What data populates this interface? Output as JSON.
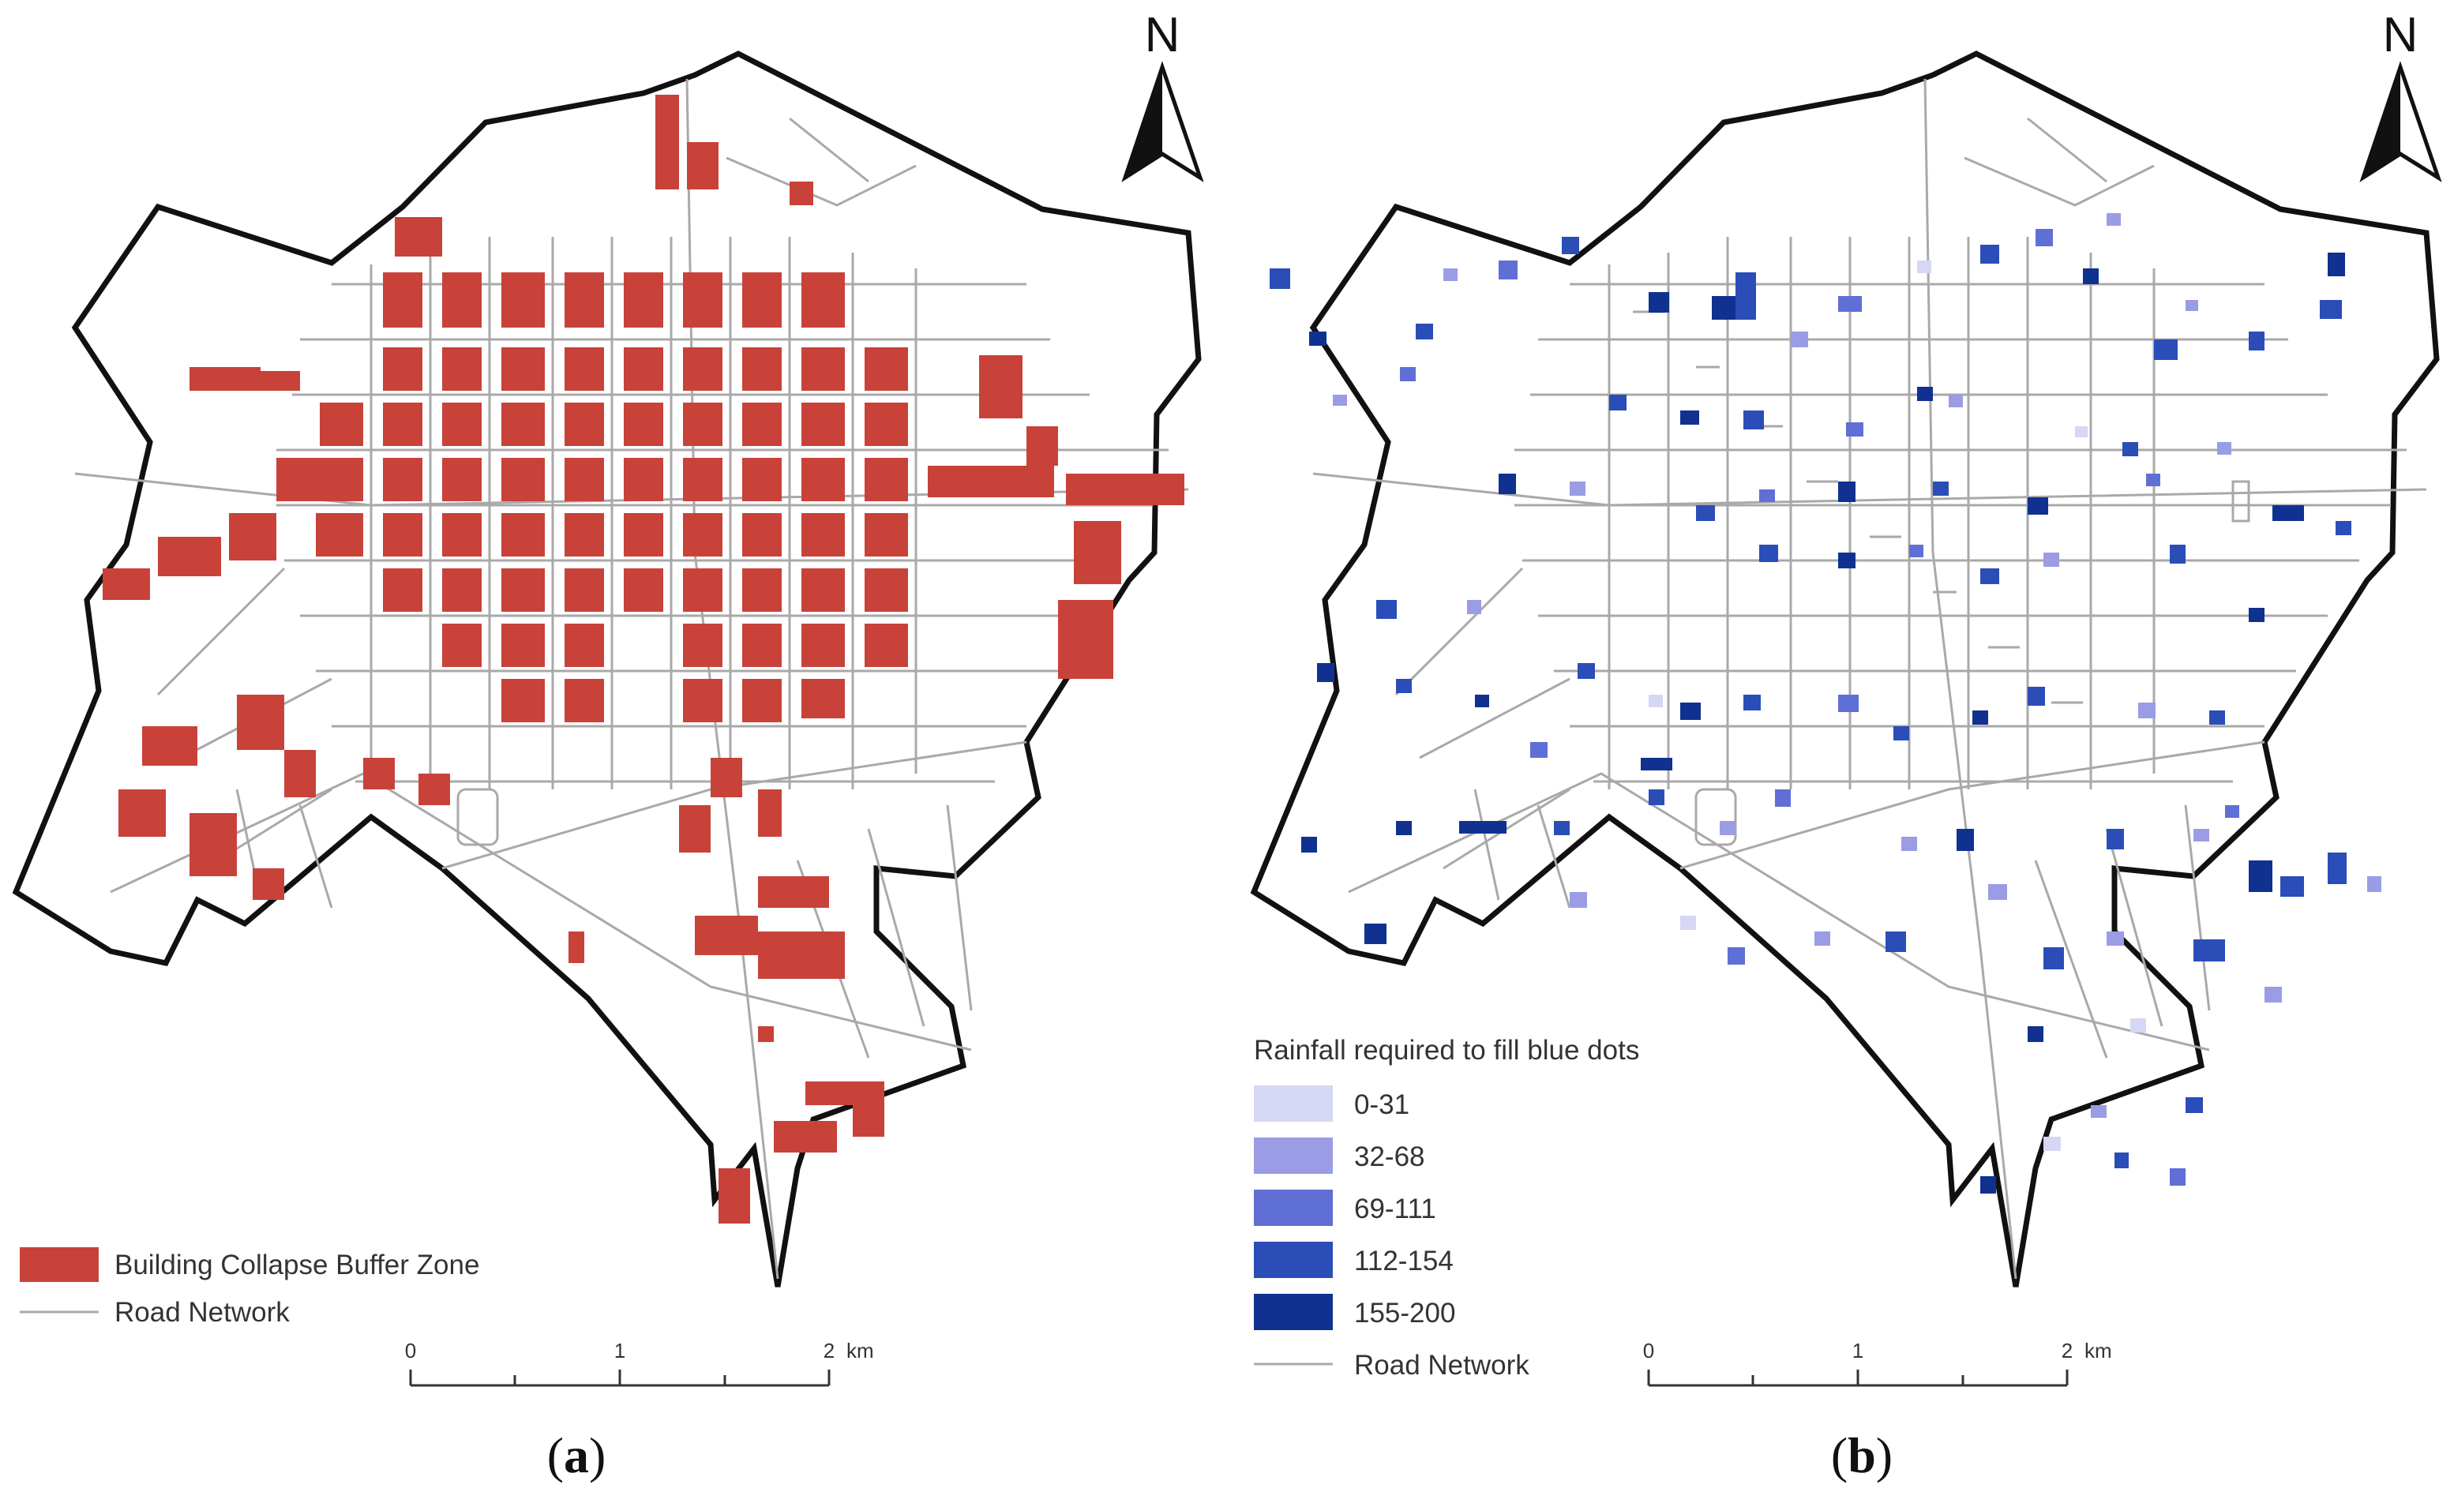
{
  "panel_a": {
    "caption_open": "(",
    "caption_letter": "a",
    "caption_close": ")",
    "north_label": "N",
    "legend": [
      {
        "label": "Building Collapse Buffer Zone",
        "color": "#c8423a",
        "kind": "patch"
      },
      {
        "label": "Road Network",
        "color": "#a9a9a9",
        "kind": "line"
      }
    ],
    "scale": {
      "ticks": [
        "0",
        "1",
        "2"
      ],
      "unit": "km"
    }
  },
  "panel_b": {
    "caption_open": "(",
    "caption_letter": "b",
    "caption_close": ")",
    "north_label": "N",
    "legend_title": "Rainfall required to fill blue dots",
    "legend": [
      {
        "label": "0-31",
        "color": "#d6d6f5",
        "kind": "patch"
      },
      {
        "label": "32-68",
        "color": "#9a9ce6",
        "kind": "patch"
      },
      {
        "label": "69-111",
        "color": "#5f6fd6",
        "kind": "patch"
      },
      {
        "label": "112-154",
        "color": "#2b4db8",
        "kind": "patch"
      },
      {
        "label": "155-200",
        "color": "#10318f",
        "kind": "patch"
      },
      {
        "label": "Road Network",
        "color": "#a9a9a9",
        "kind": "line"
      }
    ],
    "scale": {
      "ticks": [
        "0",
        "1",
        "2"
      ],
      "unit": "km"
    }
  },
  "colors": {
    "boundary": "#111111",
    "road": "#a9a9a9"
  }
}
